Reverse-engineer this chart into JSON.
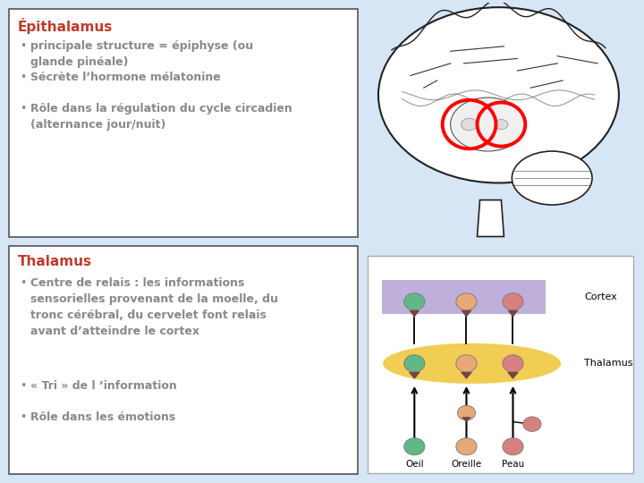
{
  "bg_color": "#d6e6f5",
  "box_color": "#ffffff",
  "title1": "Épithalamus",
  "title1_color": "#c0392b",
  "bullets1": [
    "principale structure = épiphyse (ou\nglande pinéale)",
    "Sécrète l’hormone mélatonine",
    "Rôle dans la régulation du cycle circadien\n(alternance jour/nuit)"
  ],
  "bullet_color": "#888888",
  "title2": "Thalamus",
  "title2_color": "#c0392b",
  "bullets2": [
    "Centre de relais : les informations\nsensorielles provenant de la moelle, du\ntronc cérébral, du cervelet font relais\navant d’atteindre le cortex",
    "« Tri » de l ’information",
    "Rôle dans les émotions"
  ],
  "font_size_title": 11,
  "font_size_bullet": 9,
  "bullet_char": "•",
  "cortex_color": "#b8a8d8",
  "thalamus_color": "#f0c840",
  "col_colors": [
    "#60b888",
    "#e8a878",
    "#d88080"
  ],
  "col_labels": [
    "Oeil",
    "Oreille",
    "Peau"
  ]
}
